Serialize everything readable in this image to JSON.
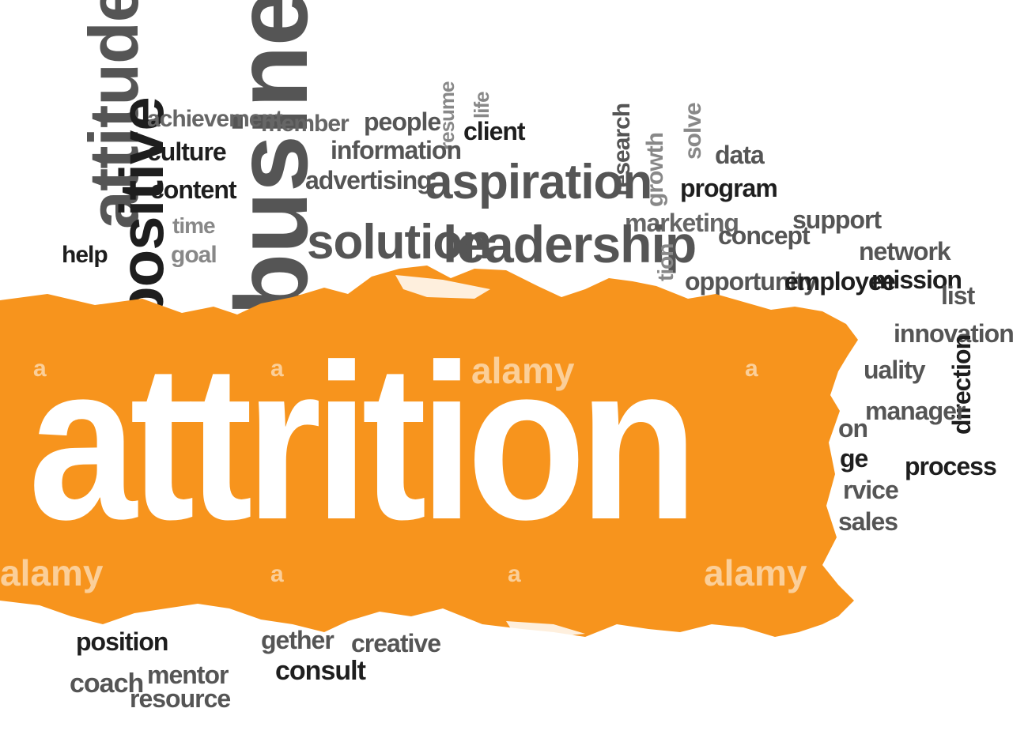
{
  "headline": "attrition",
  "colors": {
    "banner": "#f7941d",
    "word_dark": "#1e1e1e",
    "word_mid": "#555555",
    "word_light": "#8a8a8a",
    "headline": "#ffffff"
  },
  "words": {
    "attitude": "attitude",
    "business": "business",
    "positive": "positive",
    "achievement": "achievement",
    "member": "member",
    "people": "people",
    "resume": "resume",
    "life": "life",
    "client": "client",
    "culture": "culture",
    "information": "information",
    "research": "research",
    "growth": "growth",
    "solve": "solve",
    "data": "data",
    "content": "content",
    "advertising": "advertising",
    "aspiration": "aspiration",
    "program": "program",
    "time": "time",
    "goal": "goal",
    "help": "help",
    "marketing": "marketing",
    "support": "support",
    "concept": "concept",
    "solution": "solution",
    "leadership": "leadership",
    "network": "network",
    "tion": "tion",
    "opportunity": "opportunity",
    "employee": "employee",
    "mission": "mission",
    "list": "list",
    "innovation": "innovation",
    "quality": "uality",
    "direction": "direction",
    "manager": "manager",
    "on": "on",
    "ge": "ge",
    "process": "process",
    "service": "rvice",
    "sales": "sales",
    "position": "position",
    "together": "gether",
    "creative": "creative",
    "consult": "consult",
    "coach": "coach",
    "mentor": "mentor",
    "resource": "resource"
  },
  "watermark": {
    "brand": "alamy",
    "letter": "a"
  }
}
